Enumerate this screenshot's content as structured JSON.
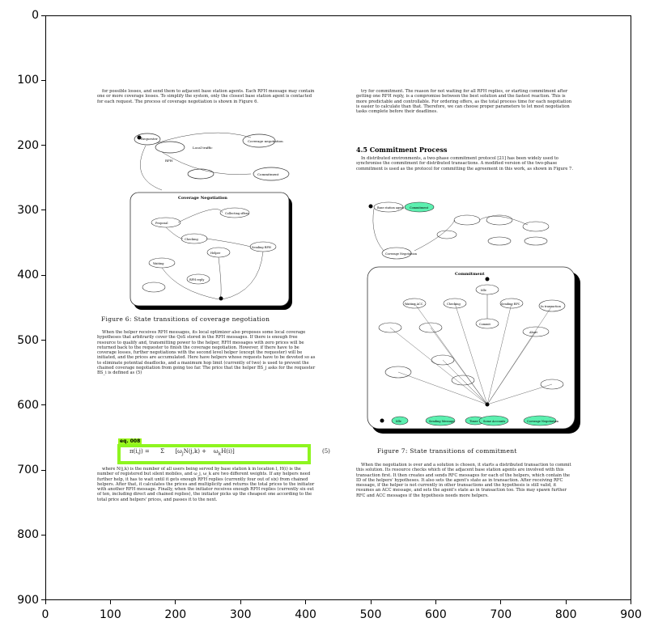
{
  "axes": {
    "x_ticks": [
      "0",
      "100",
      "200",
      "300",
      "400",
      "500",
      "600",
      "700",
      "800",
      "900"
    ],
    "y_ticks": [
      "0",
      "100",
      "200",
      "300",
      "400",
      "500",
      "600",
      "700",
      "800",
      "900"
    ]
  },
  "left_column": {
    "top_text": "for possible losses, and send them to adjacent base station agents. Each RFH message may contain one or more coverage losses. To simplify the system, only the closest base station agent is contacted for each request. The process of coverage negotiation is shown in Figure 6.",
    "figure_caption": "Figure 6: State transitions of coverage negotiation",
    "body_text": "When the helper receives RFH messages, its local optimizer also proposes some local coverage hypotheses that arbitrarily cover the QoS stored in the RFH messages. If there is enough free resource to qualify and, transmitting power to the helper, RFH messages with zero prices will be returned back to the requester to finish the coverage negotiation. However, if there have to be coverage losses, further negotiations with the second level helper (except the requester) will be initiated, and the prices are accumulated. Here have helpers whose requests have to be devoted so as to eliminate potential deadlocks, and a maximum hop limit (currently of two) is used to prevent the chained coverage negotiation from going too far. The price that the helper BS_j asks for the requester BS_i is defined as (5)",
    "eq_label": "eq. 008",
    "eq_number": "(5)",
    "after_eq_text": "where N(j,k) is the number of all users being served by base station k in location l, H(i) is the number of registered but silent mobiles, and ω_j, ω_k are two different weights. If any helpers need further help, it has to wait until it gets enough RFH replies (currently four out of six) from chained helpers. After that, it calculates the prices and multiplicity and returns the total prices to the initiator with another RFH message. Finally, when the initiator receives enough RFH replies (currently six out of ten, including direct and chained replies), the initiator picks up the cheapest one according to the total price and helpers' prices, and passes it to the next."
  },
  "right_column": {
    "top_text": "try for commitment. The reason for not waiting for all RFH replies, or starting commitment after getting one RFH reply, is a compromise between the best solution and the fastest reaction. This is more predictable and controllable. For ordering offers, as the total process time for each negotiation is easier to calculate than that. Therefore, we can choose proper parameters to let most negotiation tasks complete before their deadlines.",
    "section_heading": "4.5   Commitment Process",
    "section_text": "In distributed environments, a two-phase commitment protocol [21] has been widely used to synchronise the commitment for distributed transactions. A modified version of the two-phase commitment is used as the protocol for committing the agreement in this work, as shown in Figure 7.",
    "figure_caption": "Figure 7: State transitions of commitment",
    "body_text": "When the negotiation is over and a solution is chosen, it starts a distributed transaction to commit this solution. Its resource checks which of the adjacent base station agents are involved with this transaction first. It then creates and sends RFC messages for each of the helpers, which contain the ID of the helpers' hypotheses. It also sets the agent's state as in transaction. After receiving RFC message, if the helper is not currently in other transactions and the hypothesis is still valid, it resumes an ACC message, and sets the agent's state as in transaction too. This may spawn further RFC and ACC messages if the hypothesis needs more helpers."
  },
  "fig6_labels": {
    "state1": "Requester",
    "state2": "Local traffic",
    "state3": "Coverage negotiation",
    "state4": "Idle",
    "state5": "RFH",
    "state6": "Commitment",
    "box_title": "Coverage Negotiation",
    "inner1": "Collecting offers",
    "inner2": "Proposal",
    "inner3": "Checking",
    "inner4": "Sending RFH",
    "inner5": "Helper",
    "inner6": "Waiting",
    "inner7": "RFH reply"
  },
  "fig7_labels": {
    "top1": "Base station agent",
    "top2": "Commitment",
    "box_title": "Commitment",
    "s1": "Idle",
    "s2": "Waiting ACC",
    "s3": "Checking",
    "s4": "Sending RFC",
    "s5": "In transaction",
    "s6": "Commit",
    "s7": "Abort",
    "s8": "Coverage Negotiation",
    "bottom1": "Idle",
    "bottom2": "Sending Message",
    "bottom3": "Timer",
    "bottom4": "Some Accounts",
    "bottom5": "Coverage Negotiation"
  },
  "colors": {
    "highlight_box": "#8ef51f",
    "fig7_state_fill": "#5cf0b0"
  }
}
